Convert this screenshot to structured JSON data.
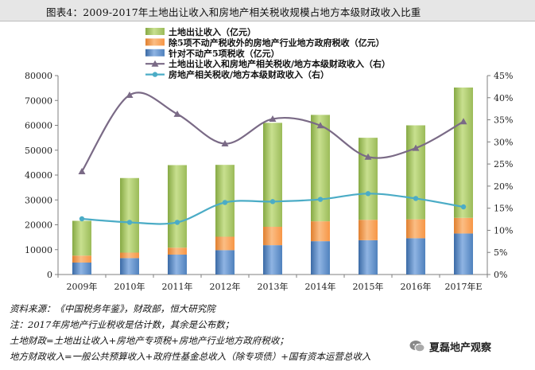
{
  "header": {
    "title": "图表4：2009-2017年土地出让收入和房地产相关税收规模占地方本级财政收入比重"
  },
  "chart_data": {
    "type": "bar",
    "stacked": true,
    "categories": [
      "2009年",
      "2010年",
      "2011年",
      "2012年",
      "2013年",
      "2014年",
      "2015年",
      "2016年",
      "2017年E"
    ],
    "left_axis": {
      "range": [
        0,
        80000
      ],
      "ticks": [
        "0",
        "10000",
        "20000",
        "30000",
        "40000",
        "50000",
        "60000",
        "70000",
        "80000"
      ]
    },
    "right_axis": {
      "range": [
        0,
        45
      ],
      "ticks": [
        "0%",
        "5%",
        "10%",
        "15%",
        "20%",
        "25%",
        "30%",
        "35%",
        "40%",
        "45%"
      ]
    },
    "series": [
      {
        "name": "针对不动产5项税收（亿元）",
        "kind": "bar",
        "color": "#4f81bd",
        "values": [
          4800,
          6600,
          8000,
          9800,
          11800,
          13400,
          13800,
          14600,
          16500
        ]
      },
      {
        "name": "除5项不动产税收外的房地产行业地方政府税收（亿元）",
        "kind": "bar",
        "color": "#f79646",
        "values": [
          2800,
          2200,
          2800,
          5400,
          7400,
          8000,
          8200,
          7600,
          6300
        ]
      },
      {
        "name": "土地出让收入（亿元）",
        "kind": "bar",
        "color": "#9bbb59",
        "values": [
          14000,
          30000,
          33200,
          28900,
          41800,
          42800,
          33000,
          37800,
          52400
        ]
      },
      {
        "name": "土地出让收入和房地产相关税收/地方本级财政收入（右）",
        "kind": "line",
        "axis": "right",
        "color": "#7a6a86",
        "values": [
          23.3,
          40.6,
          36.3,
          29.6,
          35.2,
          33.7,
          26.6,
          28.6,
          34.6
        ]
      },
      {
        "name": "房地产相关税收/地方本级财政收入（右）",
        "kind": "line",
        "axis": "right",
        "color": "#4bacc6",
        "values": [
          12.6,
          11.8,
          11.8,
          16.3,
          16.5,
          17.0,
          18.3,
          17.2,
          15.3
        ]
      }
    ],
    "legend_order": [
      2,
      1,
      0,
      3,
      4
    ],
    "legend_position": "top-left"
  },
  "notes": [
    "资料来源：《中国税务年鉴》，财政部，恒大研究院",
    "注：2017年房地产行业税收是估计数，其余是公布数；",
    "土地财政=土地出让收入+房地产专项税+房地产行业地方政府税收；",
    "地方财政收入=一般公共预算收入+政府性基金总收入（除专项债）+国有资本运营总收入"
  ],
  "watermark": {
    "text": "夏磊地产观察",
    "icon": "wechat-icon"
  }
}
